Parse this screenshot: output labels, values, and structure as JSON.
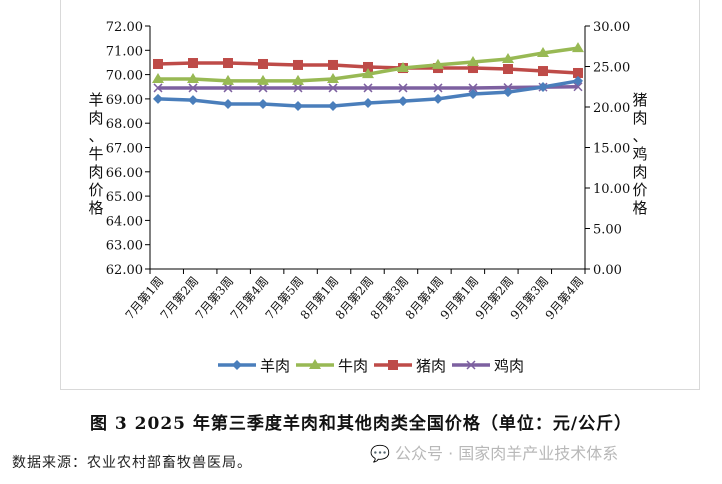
{
  "chart_data": {
    "type": "line",
    "title": "图 3   2025 年第三季度羊肉和其他肉类全国价格（单位：元/公斤）",
    "categories": [
      "7月第1周",
      "7月第2周",
      "7月第3周",
      "7月第4周",
      "7月第5周",
      "8月第1周",
      "8月第2周",
      "8月第3周",
      "8月第4周",
      "9月第1周",
      "9月第2周",
      "9月第3周",
      "9月第4周"
    ],
    "ylabel": "羊肉、牛肉价格",
    "y2label": "猪肉、鸡肉价格",
    "ylim": [
      62,
      72
    ],
    "y2lim": [
      0,
      30
    ],
    "yticks": [
      "62.00",
      "63.00",
      "64.00",
      "65.00",
      "66.00",
      "67.00",
      "68.00",
      "69.00",
      "70.00",
      "71.00",
      "72.00"
    ],
    "y2ticks": [
      "0.00",
      "5.00",
      "10.00",
      "15.00",
      "20.00",
      "25.00",
      "30.00"
    ],
    "legend_position": "bottom",
    "series": [
      {
        "name": "羊肉",
        "axis": "left",
        "color": "#4a7ebb",
        "marker": "diamond",
        "values": [
          69.0,
          68.95,
          68.79,
          68.79,
          68.71,
          68.71,
          68.83,
          68.91,
          69.0,
          69.2,
          69.28,
          69.49,
          69.74
        ]
      },
      {
        "name": "牛肉",
        "axis": "left",
        "color": "#98b954",
        "marker": "triangle",
        "values": [
          69.82,
          69.82,
          69.74,
          69.74,
          69.74,
          69.82,
          70.02,
          70.27,
          70.4,
          70.52,
          70.64,
          70.89,
          71.09
        ]
      },
      {
        "name": "猪肉",
        "axis": "right",
        "color": "#be4b48",
        "marker": "square",
        "values": [
          25.31,
          25.43,
          25.43,
          25.31,
          25.19,
          25.19,
          24.94,
          24.81,
          24.81,
          24.81,
          24.69,
          24.44,
          24.2
        ]
      },
      {
        "name": "鸡肉",
        "axis": "right",
        "color": "#7d60a0",
        "marker": "x",
        "values": [
          22.35,
          22.35,
          22.35,
          22.35,
          22.35,
          22.35,
          22.35,
          22.35,
          22.35,
          22.35,
          22.4,
          22.45,
          22.5
        ]
      }
    ]
  },
  "caption": "图 3   2025 年第三季度羊肉和其他肉类全国价格（单位：元/公斤）",
  "source": "数据来源：农业农村部畜牧兽医局。",
  "watermark": "公众号 · 国家肉羊产业技术体系"
}
